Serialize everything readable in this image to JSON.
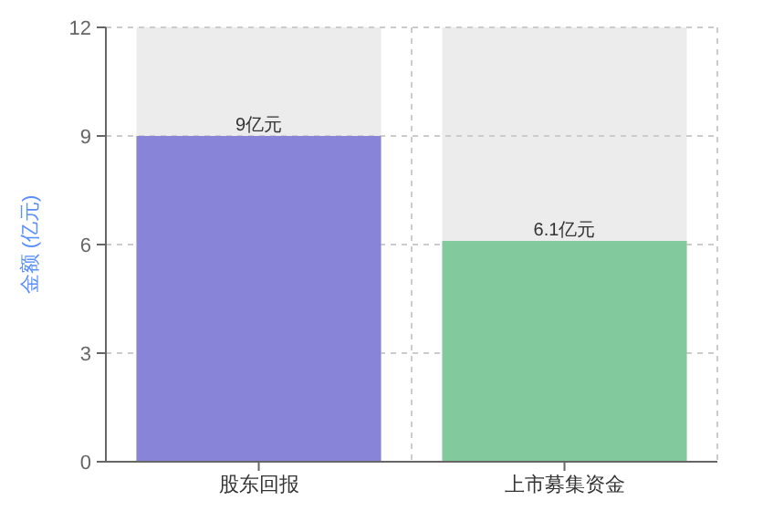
{
  "chart_data": {
    "type": "bar",
    "ylabel": "金额 (亿元)",
    "categories": [
      "股东回报",
      "上市募集资金"
    ],
    "values": [
      9,
      6.1
    ],
    "colors": [
      "#8884d8",
      "#82ca9d"
    ],
    "value_labels": [
      "9亿元",
      "6.1亿元"
    ],
    "ylim": [
      0,
      12
    ],
    "yticks": [
      0,
      3,
      6,
      9,
      12
    ],
    "grid": true
  }
}
